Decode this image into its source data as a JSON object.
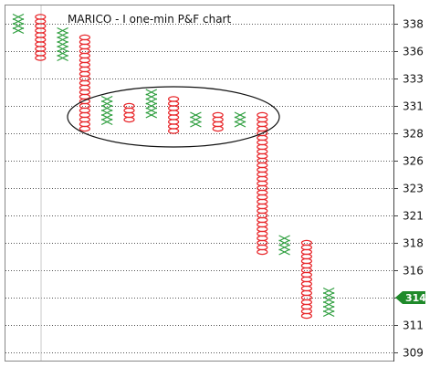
{
  "chart_data": {
    "type": "point-and-figure",
    "title": "MARICO - I one-min P&F chart",
    "y_ticks": [
      "338",
      "336",
      "333",
      "331",
      "328",
      "326",
      "323",
      "321",
      "318",
      "316",
      "314",
      "311",
      "309"
    ],
    "ylim": [
      309,
      338
    ],
    "grid": true,
    "last_price": "314",
    "colors": {
      "x": "#2e9e3e",
      "o": "#e8262a",
      "tag": "#1f8a2a",
      "grid": "#555555",
      "frame": "#888888",
      "ellipse": "#111111"
    },
    "columns": [
      {
        "type": "X",
        "low": 337.5,
        "high": 338.5
      },
      {
        "type": "O",
        "low": 335.5,
        "high": 338.5
      },
      {
        "type": "X",
        "low": 335.5,
        "high": 337.5
      },
      {
        "type": "O",
        "low": 328.5,
        "high": 337.0
      },
      {
        "type": "X",
        "low": 329.5,
        "high": 331.5
      },
      {
        "type": "O",
        "low": 329.5,
        "high": 331.0
      },
      {
        "type": "X",
        "low": 330.0,
        "high": 332.0
      },
      {
        "type": "O",
        "low": 328.5,
        "high": 331.5
      },
      {
        "type": "X",
        "low": 329.0,
        "high": 330.0
      },
      {
        "type": "O",
        "low": 328.5,
        "high": 330.0
      },
      {
        "type": "X",
        "low": 329.0,
        "high": 330.0
      },
      {
        "type": "O",
        "low": 317.5,
        "high": 330.0
      },
      {
        "type": "X",
        "low": 317.5,
        "high": 318.5
      },
      {
        "type": "O",
        "low": 312.0,
        "high": 318.0
      },
      {
        "type": "X",
        "low": 312.5,
        "high": 314.5
      }
    ]
  }
}
